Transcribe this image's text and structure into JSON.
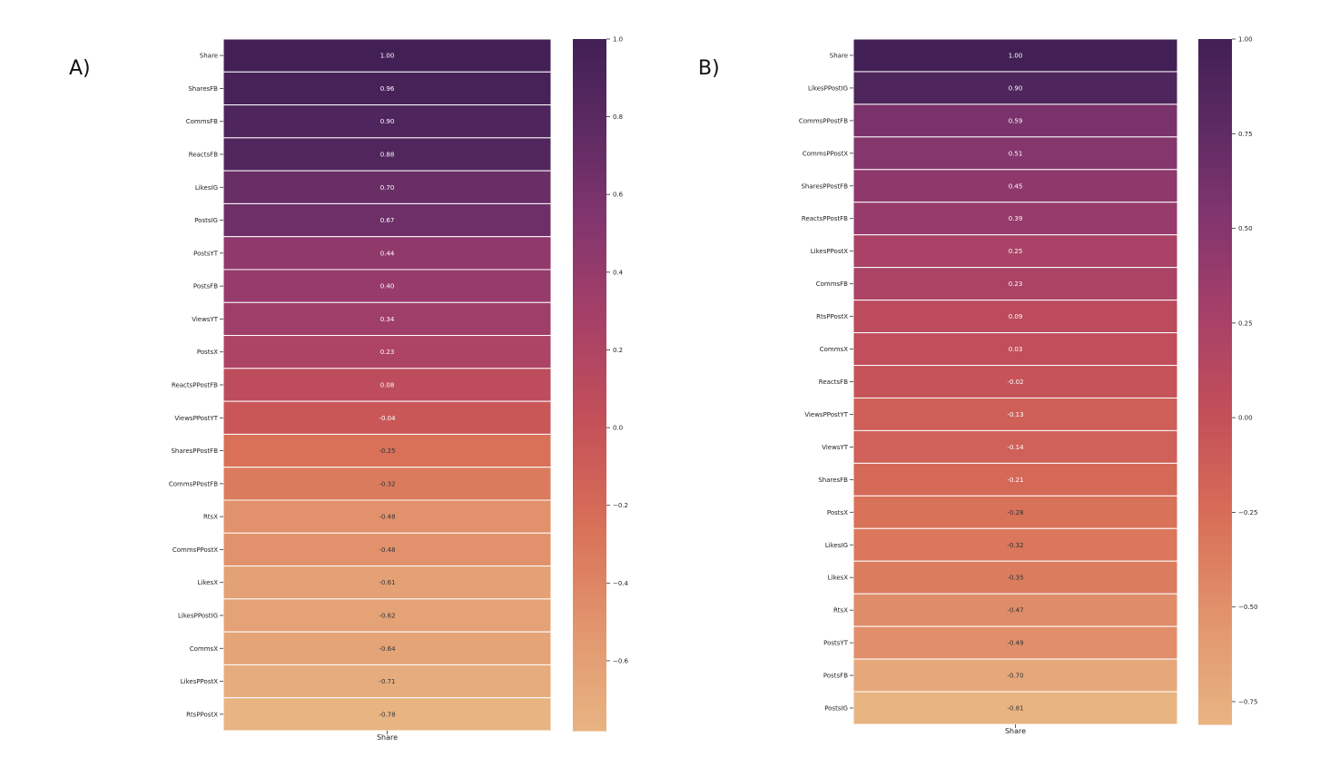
{
  "chart_data": [
    {
      "type": "heatmap",
      "panel_label": "A)",
      "x_categories": [
        "Share"
      ],
      "rows": [
        "Share",
        "SharesFB",
        "CommsFB",
        "ReactsFB",
        "LikesIG",
        "PostsIG",
        "PostsYT",
        "PostsFB",
        "ViewsYT",
        "PostsX",
        "ReactsPPostFB",
        "ViewsPPostYT",
        "SharesPPostFB",
        "CommsPPostFB",
        "RtsX",
        "CommsPPostX",
        "LikesX",
        "LikesPPostIG",
        "CommsX",
        "LikesPPostX",
        "RtsPPostX"
      ],
      "values": [
        1.0,
        0.96,
        0.9,
        0.88,
        0.7,
        0.67,
        0.44,
        0.4,
        0.34,
        0.23,
        0.08,
        -0.04,
        -0.25,
        -0.32,
        -0.48,
        -0.48,
        -0.61,
        -0.62,
        -0.64,
        -0.71,
        -0.78
      ],
      "value_labels": [
        "1.00",
        "0.96",
        "0.90",
        "0.88",
        "0.70",
        "0.67",
        "0.44",
        "0.40",
        "0.34",
        "0.23",
        "0.08",
        "-0.04",
        "-0.25",
        "-0.32",
        "-0.48",
        "-0.48",
        "-0.61",
        "-0.62",
        "-0.64",
        "-0.71",
        "-0.78"
      ],
      "colorbar": {
        "min": -0.78,
        "max": 1.0,
        "ticks": [
          1.0,
          0.8,
          0.6,
          0.4,
          0.2,
          0.0,
          -0.2,
          -0.4,
          -0.6
        ],
        "tick_labels": [
          "1.0",
          "0.8",
          "0.6",
          "0.4",
          "0.2",
          "0.0",
          "−0.2",
          "−0.4",
          "−0.6"
        ]
      },
      "colormap": "flare",
      "grid": true
    },
    {
      "type": "heatmap",
      "panel_label": "B)",
      "x_categories": [
        "Share"
      ],
      "rows": [
        "Share",
        "LikesPPostIG",
        "CommsPPostFB",
        "CommsPPostX",
        "SharesPPostFB",
        "ReactsPPostFB",
        "LikesPPostX",
        "CommsFB",
        "RtsPPostX",
        "CommsX",
        "ReactsFB",
        "ViewsPPostYT",
        "ViewsYT",
        "SharesFB",
        "PostsX",
        "LikesIG",
        "LikesX",
        "RtsX",
        "PostsYT",
        "PostsFB",
        "PostsIG"
      ],
      "values": [
        1.0,
        0.9,
        0.59,
        0.51,
        0.45,
        0.39,
        0.25,
        0.23,
        0.09,
        0.03,
        -0.02,
        -0.13,
        -0.14,
        -0.21,
        -0.28,
        -0.32,
        -0.35,
        -0.47,
        -0.49,
        -0.7,
        -0.81
      ],
      "value_labels": [
        "1.00",
        "0.90",
        "0.59",
        "0.51",
        "0.45",
        "0.39",
        "0.25",
        "0.23",
        "0.09",
        "0.03",
        "-0.02",
        "-0.13",
        "-0.14",
        "-0.21",
        "-0.28",
        "-0.32",
        "-0.35",
        "-0.47",
        "-0.49",
        "-0.70",
        "-0.81"
      ],
      "colorbar": {
        "min": -0.81,
        "max": 1.0,
        "ticks": [
          1.0,
          0.75,
          0.5,
          0.25,
          0.0,
          -0.25,
          -0.5,
          -0.75
        ],
        "tick_labels": [
          "1.00",
          "0.75",
          "0.50",
          "0.25",
          "0.00",
          "−0.25",
          "−0.50",
          "−0.75"
        ]
      },
      "colormap": "flare",
      "grid": true
    }
  ]
}
